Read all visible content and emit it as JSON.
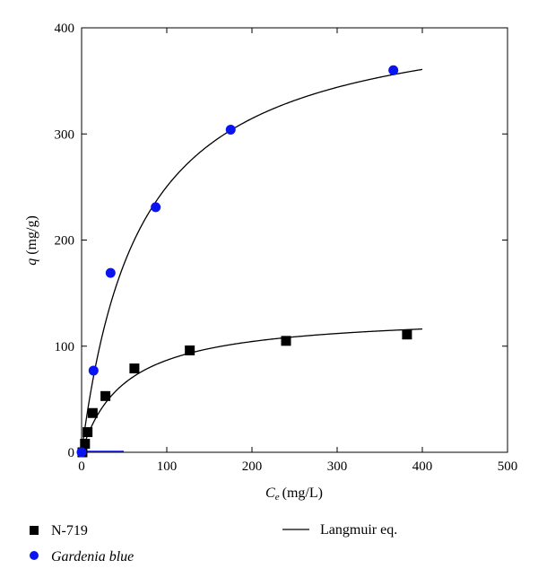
{
  "chart_data": {
    "type": "scatter",
    "title": "",
    "xlabel": "C",
    "xlabel_sub": "e",
    "xlabel_unit": "(mg/L)",
    "ylabel": "q",
    "ylabel_unit": "(mg/g)",
    "xlim": [
      0,
      500
    ],
    "ylim": [
      0,
      400
    ],
    "xticks": [
      0,
      100,
      200,
      300,
      400,
      500
    ],
    "yticks": [
      0,
      100,
      200,
      300,
      400
    ],
    "grid": false,
    "legend_position": "bottom",
    "series": [
      {
        "name": "N-719",
        "marker": "square",
        "color": "#000000",
        "x": [
          1,
          4,
          7,
          13,
          28,
          62,
          127,
          240,
          382
        ],
        "y": [
          0,
          8,
          19,
          37,
          53,
          79,
          96,
          105,
          111
        ]
      },
      {
        "name": "Gardenia blue",
        "marker": "circle",
        "color": "#0a14f0",
        "x": [
          0,
          14,
          34,
          87,
          175,
          366
        ],
        "y": [
          0,
          77,
          169,
          231,
          304,
          360
        ]
      }
    ],
    "fits": [
      {
        "name": "Langmuir eq.",
        "qmax": 131,
        "K": 0.0196,
        "xmax": 400,
        "color": "#000000"
      },
      {
        "name": "Langmuir eq.",
        "qmax": 423,
        "K": 0.0145,
        "xmax": 400,
        "color": "#000000"
      }
    ],
    "legend": {
      "n719": "N-719",
      "gardenia": "Gardenia blue",
      "langmuir": "Langmuir eq."
    }
  }
}
